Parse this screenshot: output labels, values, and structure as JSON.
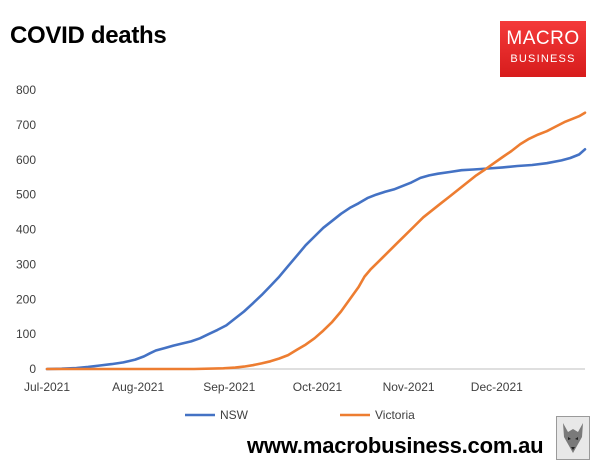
{
  "title": "COVID deaths",
  "logo": {
    "top": "MACRO",
    "bottom": "BUSINESS"
  },
  "footer_url": "www.macrobusiness.com.au",
  "chart_data": {
    "type": "line",
    "title": "COVID deaths",
    "xlabel": "",
    "ylabel": "",
    "ylim": [
      0,
      800
    ],
    "yticks": [
      0,
      100,
      200,
      300,
      400,
      500,
      600,
      700,
      800
    ],
    "xlim": [
      0,
      183
    ],
    "x_ticks": [
      {
        "label": "Jul-2021",
        "day": 0
      },
      {
        "label": "Aug-2021",
        "day": 31
      },
      {
        "label": "Sep-2021",
        "day": 62
      },
      {
        "label": "Oct-2021",
        "day": 92
      },
      {
        "label": "Nov-2021",
        "day": 123
      },
      {
        "label": "Dec-2021",
        "day": 153
      }
    ],
    "grid": "vertical-none",
    "legend_position": "bottom",
    "series": [
      {
        "name": "NSW",
        "color": "#4472c4",
        "points": [
          [
            0,
            0
          ],
          [
            5,
            1
          ],
          [
            10,
            3
          ],
          [
            14,
            6
          ],
          [
            18,
            10
          ],
          [
            22,
            14
          ],
          [
            26,
            19
          ],
          [
            30,
            27
          ],
          [
            33,
            36
          ],
          [
            35,
            45
          ],
          [
            37,
            53
          ],
          [
            40,
            60
          ],
          [
            43,
            67
          ],
          [
            46,
            73
          ],
          [
            49,
            79
          ],
          [
            52,
            88
          ],
          [
            55,
            100
          ],
          [
            58,
            112
          ],
          [
            61,
            125
          ],
          [
            64,
            145
          ],
          [
            67,
            165
          ],
          [
            70,
            188
          ],
          [
            73,
            212
          ],
          [
            76,
            238
          ],
          [
            79,
            265
          ],
          [
            82,
            295
          ],
          [
            85,
            325
          ],
          [
            88,
            355
          ],
          [
            91,
            380
          ],
          [
            94,
            405
          ],
          [
            97,
            425
          ],
          [
            100,
            445
          ],
          [
            103,
            462
          ],
          [
            106,
            475
          ],
          [
            109,
            490
          ],
          [
            112,
            500
          ],
          [
            115,
            508
          ],
          [
            118,
            515
          ],
          [
            121,
            525
          ],
          [
            124,
            535
          ],
          [
            127,
            548
          ],
          [
            130,
            555
          ],
          [
            133,
            560
          ],
          [
            137,
            565
          ],
          [
            141,
            570
          ],
          [
            145,
            572
          ],
          [
            150,
            575
          ],
          [
            155,
            578
          ],
          [
            160,
            582
          ],
          [
            165,
            585
          ],
          [
            170,
            590
          ],
          [
            175,
            598
          ],
          [
            178,
            605
          ],
          [
            181,
            615
          ],
          [
            183,
            630
          ]
        ]
      },
      {
        "name": "Victoria",
        "color": "#ed7d31",
        "points": [
          [
            0,
            0
          ],
          [
            50,
            0
          ],
          [
            60,
            2
          ],
          [
            64,
            4
          ],
          [
            67,
            7
          ],
          [
            70,
            11
          ],
          [
            73,
            16
          ],
          [
            76,
            22
          ],
          [
            79,
            30
          ],
          [
            82,
            40
          ],
          [
            85,
            55
          ],
          [
            88,
            70
          ],
          [
            91,
            88
          ],
          [
            94,
            110
          ],
          [
            97,
            135
          ],
          [
            100,
            165
          ],
          [
            103,
            200
          ],
          [
            106,
            235
          ],
          [
            108,
            265
          ],
          [
            110,
            285
          ],
          [
            113,
            310
          ],
          [
            116,
            335
          ],
          [
            119,
            360
          ],
          [
            122,
            385
          ],
          [
            125,
            410
          ],
          [
            128,
            435
          ],
          [
            131,
            455
          ],
          [
            134,
            475
          ],
          [
            137,
            495
          ],
          [
            140,
            515
          ],
          [
            143,
            535
          ],
          [
            146,
            555
          ],
          [
            149,
            572
          ],
          [
            152,
            590
          ],
          [
            155,
            608
          ],
          [
            158,
            625
          ],
          [
            161,
            645
          ],
          [
            164,
            660
          ],
          [
            167,
            672
          ],
          [
            170,
            682
          ],
          [
            173,
            695
          ],
          [
            176,
            708
          ],
          [
            179,
            718
          ],
          [
            181,
            725
          ],
          [
            183,
            735
          ]
        ]
      }
    ]
  }
}
